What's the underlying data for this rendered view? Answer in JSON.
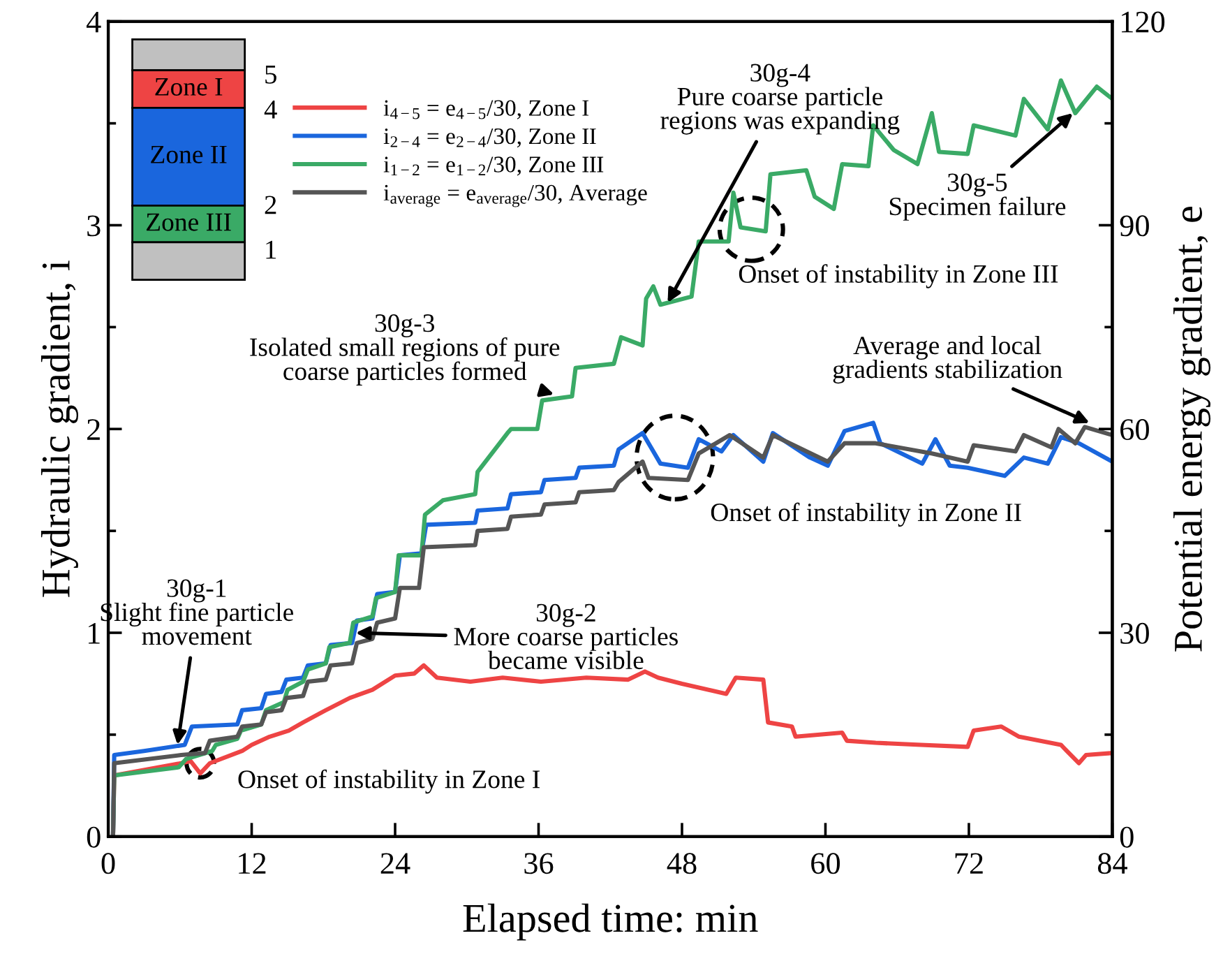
{
  "chart_data": {
    "type": "line",
    "xlabel": "Elapsed time: min",
    "ylabel": "Hydraulic gradient, i",
    "y2label": "Potential energy gradient, e",
    "xlim": [
      0,
      84
    ],
    "xticks": [
      0,
      12,
      24,
      36,
      48,
      60,
      72,
      84
    ],
    "ylim": [
      0,
      4
    ],
    "yticks": [
      0,
      1,
      2,
      3,
      4
    ],
    "y2lim": [
      0,
      120
    ],
    "y2ticks": [
      0,
      30,
      60,
      90,
      120
    ],
    "legend": "top left",
    "grid": false,
    "line_style": "solid",
    "marker": "none",
    "series": [
      {
        "name": "i$_{4−5}$ = e$_{4−5}$/30, Zone I",
        "color": "#ee4444",
        "x": [
          0.4,
          0.5,
          6.1,
          6.9,
          7.7,
          8.5,
          11.2,
          12.0,
          13.5,
          15.1,
          16.3,
          18.2,
          20.2,
          22.1,
          24.0,
          25.6,
          26.4,
          27.5,
          30.3,
          33.0,
          36.2,
          40.0,
          43.5,
          44.9,
          46.0,
          48.0,
          51.7,
          52.5,
          54.8,
          55.2,
          57.2,
          57.5,
          61.4,
          61.8,
          64.2,
          68.0,
          71.9,
          72.4,
          74.7,
          76.2,
          79.7,
          81.2,
          81.8,
          84.0
        ],
        "values": [
          0.0,
          0.3,
          0.36,
          0.37,
          0.31,
          0.36,
          0.42,
          0.45,
          0.49,
          0.52,
          0.56,
          0.62,
          0.68,
          0.72,
          0.79,
          0.8,
          0.84,
          0.78,
          0.76,
          0.78,
          0.76,
          0.78,
          0.77,
          0.81,
          0.78,
          0.75,
          0.7,
          0.78,
          0.77,
          0.56,
          0.54,
          0.49,
          0.51,
          0.47,
          0.46,
          0.45,
          0.44,
          0.52,
          0.54,
          0.49,
          0.45,
          0.36,
          0.4,
          0.41
        ]
      },
      {
        "name": "i$_{2−4}$ = e$_{2−4}$/30, Zone II",
        "color": "#1a66dd",
        "x": [
          0.4,
          0.5,
          3.0,
          6.4,
          7.0,
          10.8,
          11.2,
          12.8,
          13.2,
          14.5,
          14.9,
          16.3,
          16.7,
          18.2,
          18.6,
          20.4,
          20.8,
          22.1,
          22.5,
          24.0,
          24.4,
          26.2,
          26.6,
          30.7,
          30.9,
          33.4,
          33.7,
          36.2,
          36.5,
          39.1,
          39.4,
          42.3,
          42.7,
          44.7,
          46.2,
          48.5,
          49.4,
          51.3,
          52.3,
          54.8,
          55.6,
          58.7,
          60.2,
          61.6,
          64.0,
          64.6,
          68.1,
          69.2,
          70.4,
          71.9,
          75.0,
          76.6,
          78.6,
          79.7,
          81.2,
          84.0
        ],
        "values": [
          0.0,
          0.4,
          0.42,
          0.45,
          0.54,
          0.55,
          0.62,
          0.63,
          0.7,
          0.71,
          0.77,
          0.78,
          0.84,
          0.85,
          0.94,
          0.95,
          1.06,
          1.07,
          1.19,
          1.2,
          1.38,
          1.39,
          1.53,
          1.54,
          1.6,
          1.61,
          1.68,
          1.69,
          1.75,
          1.76,
          1.81,
          1.82,
          1.9,
          1.98,
          1.83,
          1.81,
          1.95,
          1.89,
          1.97,
          1.84,
          1.98,
          1.86,
          1.82,
          1.99,
          2.03,
          1.93,
          1.83,
          1.95,
          1.82,
          1.81,
          1.77,
          1.86,
          1.83,
          1.96,
          1.93,
          1.84
        ]
      },
      {
        "name": "i$_{1−2}$ = e$_{1−2}$/30, Zone III",
        "color": "#3aaa66",
        "x": [
          0.4,
          0.5,
          5.9,
          6.5,
          8.7,
          9.0,
          10.8,
          11.1,
          12.8,
          13.2,
          14.7,
          15.0,
          16.3,
          16.7,
          18.2,
          18.5,
          20.2,
          20.5,
          22.1,
          22.4,
          24.0,
          24.3,
          26.2,
          26.5,
          28.0,
          30.7,
          30.9,
          33.4,
          33.7,
          35.9,
          36.3,
          38.8,
          39.1,
          42.3,
          42.9,
          44.7,
          45.0,
          45.6,
          46.2,
          48.8,
          49.4,
          51.9,
          52.3,
          52.9,
          55.0,
          55.4,
          58.4,
          59.1,
          60.7,
          61.4,
          63.6,
          64.0,
          65.7,
          67.7,
          68.9,
          69.5,
          71.9,
          72.4,
          75.9,
          76.6,
          78.6,
          79.7,
          80.9,
          82.7,
          84.0
        ],
        "values": [
          0.0,
          0.3,
          0.34,
          0.38,
          0.42,
          0.45,
          0.48,
          0.52,
          0.55,
          0.62,
          0.66,
          0.72,
          0.76,
          0.82,
          0.85,
          0.93,
          0.95,
          1.05,
          1.08,
          1.17,
          1.2,
          1.38,
          1.38,
          1.58,
          1.65,
          1.68,
          1.79,
          1.98,
          2.0,
          2.0,
          2.14,
          2.16,
          2.3,
          2.32,
          2.45,
          2.41,
          2.64,
          2.7,
          2.61,
          2.65,
          2.92,
          2.92,
          3.16,
          2.99,
          2.97,
          3.25,
          3.27,
          3.14,
          3.08,
          3.3,
          3.29,
          3.49,
          3.37,
          3.3,
          3.55,
          3.36,
          3.35,
          3.49,
          3.44,
          3.62,
          3.47,
          3.71,
          3.55,
          3.68,
          3.62
        ]
      },
      {
        "name": "i$_{average}$ = e$_{average}$/30, Average",
        "color": "#555555",
        "x": [
          0.4,
          0.5,
          6.1,
          8.1,
          8.5,
          10.8,
          11.2,
          12.8,
          13.2,
          14.5,
          14.9,
          16.3,
          16.7,
          18.2,
          18.6,
          20.4,
          20.8,
          22.1,
          22.5,
          24.0,
          24.4,
          26.0,
          26.4,
          30.7,
          30.9,
          33.4,
          33.7,
          36.2,
          36.5,
          39.1,
          39.4,
          42.3,
          42.7,
          44.7,
          45.2,
          48.5,
          49.4,
          52.0,
          54.8,
          55.6,
          60.2,
          61.6,
          64.2,
          68.9,
          71.9,
          72.4,
          75.9,
          76.6,
          78.9,
          79.5,
          80.9,
          81.7,
          84.0
        ],
        "values": [
          0.0,
          0.36,
          0.4,
          0.41,
          0.47,
          0.49,
          0.54,
          0.55,
          0.61,
          0.62,
          0.68,
          0.69,
          0.76,
          0.77,
          0.84,
          0.85,
          0.95,
          0.97,
          1.05,
          1.07,
          1.22,
          1.22,
          1.42,
          1.43,
          1.5,
          1.51,
          1.57,
          1.58,
          1.63,
          1.64,
          1.69,
          1.7,
          1.74,
          1.84,
          1.76,
          1.75,
          1.88,
          1.97,
          1.86,
          1.97,
          1.84,
          1.93,
          1.93,
          1.88,
          1.84,
          1.92,
          1.89,
          1.97,
          1.91,
          2.0,
          1.93,
          2.01,
          1.97
        ]
      }
    ],
    "annotations": [
      {
        "text": "30g-1\nSlight fine particle\nmovement",
        "x": 5.8,
        "y": 0.45
      },
      {
        "text": "30g-2\nMore coarse particles\nbecame visible",
        "x": 20.7,
        "y": 1.0
      },
      {
        "text": "30g-3\nIsolated small regions of pure\ncoarse particles formed",
        "x": 37.3,
        "y": 2.17
      },
      {
        "text": "30g-4\nPure coarse particle\nregions was expanding",
        "x": 46.8,
        "y": 2.62
      },
      {
        "text": "30g-5\nSpecimen failure",
        "x": 80.7,
        "y": 3.55
      },
      {
        "text": "Average and local\ngradients stabilization",
        "x": 82.1,
        "y": 2.03
      },
      {
        "text": "Onset of instability in Zone I",
        "x": 7.7,
        "y": 0.36
      },
      {
        "text": "Onset of instability in Zone II",
        "x": 47.4,
        "y": 1.86
      },
      {
        "text": "Onset of instability in Zone III",
        "x": 53.8,
        "y": 2.98
      },
      "Zone I",
      "Zone II",
      "Zone III",
      "5",
      "4",
      "2",
      "1"
    ]
  }
}
